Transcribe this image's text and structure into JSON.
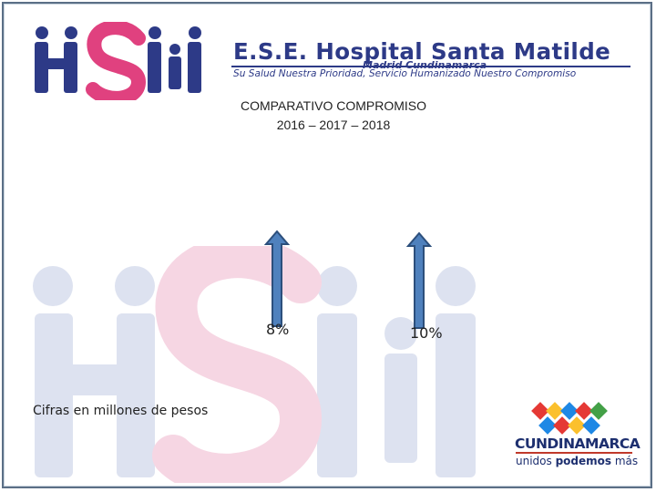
{
  "header": {
    "logo_text": "HSM",
    "org_name": "E.S.E. Hospital Santa Matilde",
    "org_location": "Madrid Cundinamarca",
    "org_motto": "Su Salud Nuestra Prioridad, Servicio Humanizado Nuestro Compromiso"
  },
  "title": {
    "line1": "COMPARATIVO COMPROMISO",
    "line2": "2016 – 2017 – 2018"
  },
  "indicators": [
    {
      "value": "8%",
      "direction": "up",
      "color": "#4f81bd"
    },
    {
      "value": "10%",
      "direction": "up",
      "color": "#4f81bd"
    }
  ],
  "footnote": "Cifras en millones de pesos",
  "partner_logo": {
    "name": "CUNDINAMARCA",
    "tagline_plain": "unidos ",
    "tagline_bold": "podemos",
    "tagline_end": " más"
  },
  "colors": {
    "brand_navy": "#2d3a87",
    "brand_magenta": "#e0417f",
    "arrow_fill": "#4f81bd",
    "arrow_stroke": "#2c4f7c"
  }
}
